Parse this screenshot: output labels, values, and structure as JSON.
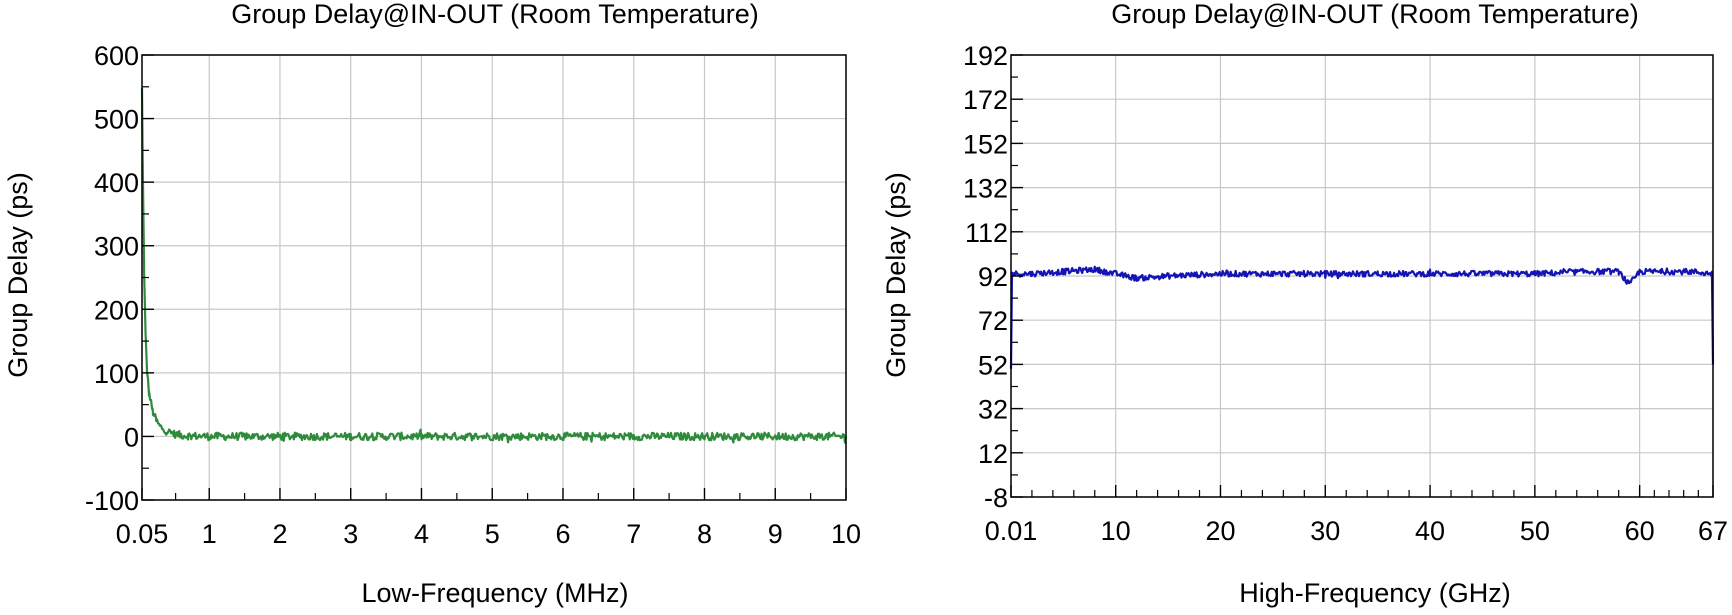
{
  "chart_data": [
    {
      "type": "line",
      "title": "Group Delay@IN-OUT (Room Temperature)",
      "xlabel": "Low-Frequency (MHz)",
      "ylabel": "Group Delay (ps)",
      "xlim": [
        0.05,
        10
      ],
      "ylim": [
        -100,
        600
      ],
      "xticks": [
        0.05,
        1,
        2,
        3,
        4,
        5,
        6,
        7,
        8,
        9,
        10
      ],
      "xtick_labels": [
        "0.05",
        "1",
        "2",
        "3",
        "4",
        "5",
        "6",
        "7",
        "8",
        "9",
        "10"
      ],
      "yticks": [
        -100,
        0,
        100,
        200,
        300,
        400,
        500,
        600
      ],
      "ytick_labels": [
        "-100",
        "0",
        "100",
        "200",
        "300",
        "400",
        "500",
        "600"
      ],
      "grid": true,
      "series": [
        {
          "color": "#2e8b3a",
          "x": [
            0.05,
            0.06,
            0.08,
            0.1,
            0.12,
            0.15,
            0.2,
            0.25,
            0.3,
            0.4,
            0.5,
            0.6,
            0.7,
            1,
            1.5,
            2,
            3,
            4,
            5,
            6,
            7,
            8,
            9,
            10
          ],
          "y": [
            548,
            430,
            260,
            160,
            105,
            68,
            40,
            25,
            16,
            8,
            4,
            2,
            1,
            0,
            0,
            0,
            0,
            0,
            0,
            0,
            0,
            0,
            0,
            0
          ],
          "noise_amplitude": 6
        }
      ]
    },
    {
      "type": "line",
      "title": "Group Delay@IN-OUT (Room Temperature)",
      "xlabel": "High-Frequency (GHz)",
      "ylabel": "Group Delay (ps)",
      "xlim": [
        0.01,
        67
      ],
      "ylim": [
        -8,
        192
      ],
      "xticks": [
        0.01,
        10,
        20,
        30,
        40,
        50,
        60,
        67
      ],
      "xtick_labels": [
        "0.01",
        "10",
        "20",
        "30",
        "40",
        "50",
        "60",
        "67"
      ],
      "yticks": [
        -8,
        12,
        32,
        52,
        72,
        92,
        112,
        132,
        152,
        172,
        192
      ],
      "ytick_labels": [
        "-8",
        "12",
        "32",
        "52",
        "72",
        "92",
        "112",
        "132",
        "152",
        "172",
        "192"
      ],
      "grid": true,
      "series": [
        {
          "color": "#1414b4",
          "x": [
            0.01,
            0.1,
            2,
            5,
            8,
            10,
            12,
            15,
            20,
            25,
            30,
            35,
            40,
            45,
            50,
            55,
            58,
            59,
            60,
            62,
            65,
            66.9,
            67
          ],
          "y": [
            50,
            93,
            93,
            94,
            95,
            93,
            91,
            92,
            93,
            93,
            93,
            93,
            93,
            93,
            93,
            94,
            94,
            88,
            94,
            94,
            94,
            93,
            52
          ],
          "noise_amplitude": 1.3
        }
      ]
    }
  ]
}
